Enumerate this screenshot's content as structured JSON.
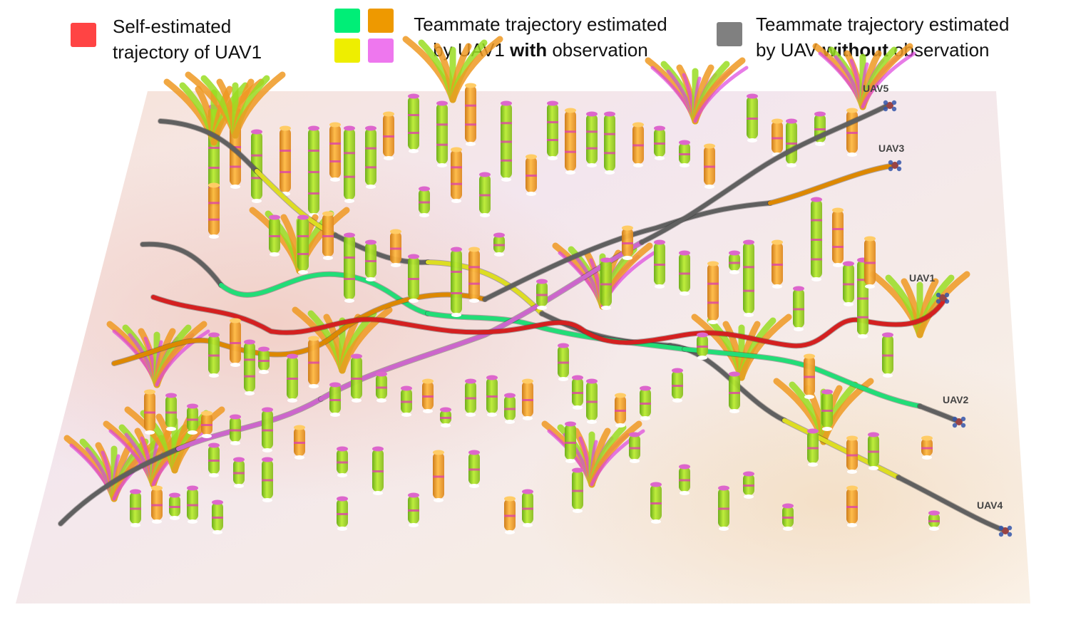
{
  "legend": {
    "self": {
      "color": "#ff4444",
      "line1": "Self-estimated",
      "line2": "trajectory of UAV1"
    },
    "with_obs": {
      "colors": [
        "#00ee77",
        "#ee9900",
        "#eeee00",
        "#ee77ee"
      ],
      "line1": "Teammate trajectory estimated",
      "line2_prefix": "by UAV1 ",
      "line2_bold": "with",
      "line2_suffix": " observation"
    },
    "without_obs": {
      "color": "#808080",
      "line1": "Teammate trajectory estimated",
      "line2_prefix": "by UAV ",
      "line2_bold": "without",
      "line2_suffix": " observation"
    }
  },
  "uav_labels": [
    "UAV5",
    "UAV3",
    "UAV1",
    "UAV2",
    "UAV4"
  ],
  "colors": {
    "self_trajectory": "#d42020",
    "unobserved": "#606060",
    "green": "#22dd77",
    "orange": "#dd8800",
    "yellow": "#dddd22",
    "magenta": "#cc66cc",
    "tree_green": "#99dd22",
    "tree_orange": "#ee9922"
  }
}
